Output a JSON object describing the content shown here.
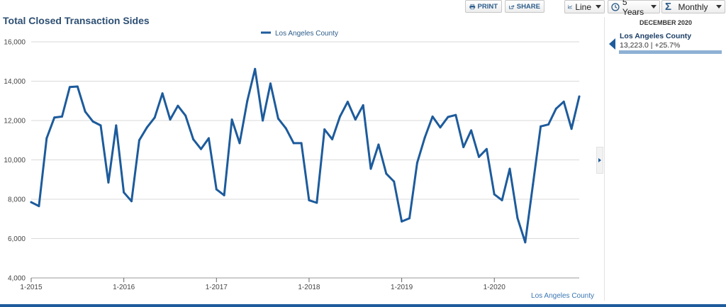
{
  "toolbar": {
    "print_label": "PRINT",
    "share_label": "SHARE",
    "chart_type": "Line",
    "range": "5 Years",
    "period": "Monthly"
  },
  "side_panel": {
    "date": "DECEMBER 2020",
    "series_name": "Los Angeles County",
    "value_text": "13,223.0 | +25.7%"
  },
  "colors": {
    "series": "#1d5b9c",
    "title": "#2d4f73",
    "grid": "#d9d9d9"
  },
  "chart_data": {
    "type": "line",
    "title": "Total Closed Transaction Sides",
    "legend": [
      "Los Angeles County"
    ],
    "legend_position": "top-center",
    "source_label": "Los Angeles County",
    "ylim": [
      4000,
      16000
    ],
    "yticks": [
      4000,
      6000,
      8000,
      10000,
      12000,
      14000,
      16000
    ],
    "ytick_labels": [
      "4,000",
      "6,000",
      "8,000",
      "10,000",
      "12,000",
      "14,000",
      "16,000"
    ],
    "xtick_labels": [
      "1-2015",
      "1-2016",
      "1-2017",
      "1-2018",
      "1-2019",
      "1-2020"
    ],
    "grid": true,
    "x": [
      "2015-01",
      "2015-02",
      "2015-03",
      "2015-04",
      "2015-05",
      "2015-06",
      "2015-07",
      "2015-08",
      "2015-09",
      "2015-10",
      "2015-11",
      "2015-12",
      "2016-01",
      "2016-02",
      "2016-03",
      "2016-04",
      "2016-05",
      "2016-06",
      "2016-07",
      "2016-08",
      "2016-09",
      "2016-10",
      "2016-11",
      "2016-12",
      "2017-01",
      "2017-02",
      "2017-03",
      "2017-04",
      "2017-05",
      "2017-06",
      "2017-07",
      "2017-08",
      "2017-09",
      "2017-10",
      "2017-11",
      "2017-12",
      "2018-01",
      "2018-02",
      "2018-03",
      "2018-04",
      "2018-05",
      "2018-06",
      "2018-07",
      "2018-08",
      "2018-09",
      "2018-10",
      "2018-11",
      "2018-12",
      "2019-01",
      "2019-02",
      "2019-03",
      "2019-04",
      "2019-05",
      "2019-06",
      "2019-07",
      "2019-08",
      "2019-09",
      "2019-10",
      "2019-11",
      "2019-12",
      "2020-01",
      "2020-02",
      "2020-03",
      "2020-04",
      "2020-05",
      "2020-06",
      "2020-07",
      "2020-08",
      "2020-09",
      "2020-10",
      "2020-11",
      "2020-12"
    ],
    "series": [
      {
        "name": "Los Angeles County",
        "values": [
          7850,
          7650,
          11100,
          12150,
          12200,
          13700,
          13730,
          12450,
          11950,
          11750,
          8850,
          11750,
          8350,
          7900,
          11000,
          11650,
          12150,
          13380,
          12050,
          12750,
          12250,
          11050,
          10550,
          11100,
          8500,
          8200,
          12050,
          10850,
          13000,
          14620,
          12000,
          13880,
          12100,
          11600,
          10850,
          10850,
          7950,
          7820,
          11550,
          11050,
          12200,
          12950,
          12050,
          12780,
          9550,
          10780,
          9300,
          8900,
          6870,
          7030,
          9850,
          11150,
          12200,
          11650,
          12180,
          12280,
          10650,
          11500,
          10150,
          10550,
          8250,
          7950,
          9550,
          7050,
          5810,
          8750,
          11700,
          11800,
          12600,
          12960,
          11580,
          13223
        ]
      }
    ]
  }
}
